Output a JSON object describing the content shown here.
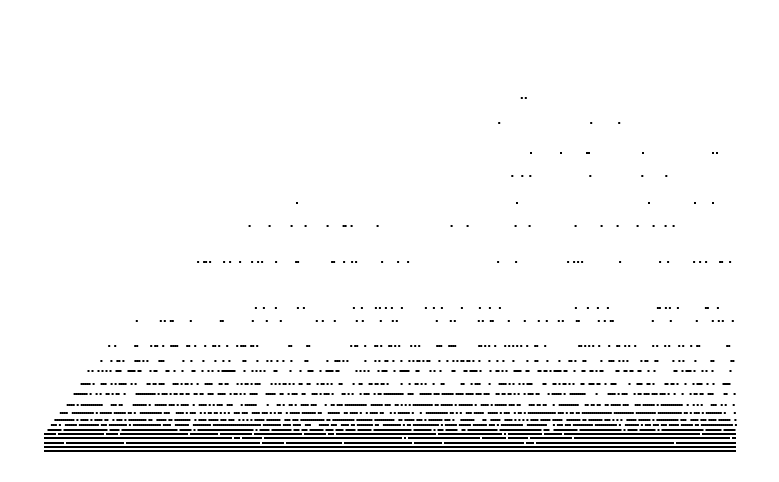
{
  "chart_data": {
    "type": "scatter",
    "title": "",
    "xlabel": "",
    "ylabel": "",
    "xlim": [
      0,
      1
    ],
    "ylim": [
      0,
      1
    ],
    "grid": false,
    "legend": "none",
    "marker_color": "#000000",
    "background_color": "#ffffff",
    "rows": [
      {
        "y": 0.0,
        "density": 1.0,
        "xmin": 0.0,
        "xmax": 1.0
      },
      {
        "y": 0.01,
        "density": 1.0,
        "xmin": 0.0,
        "xmax": 1.0
      },
      {
        "y": 0.02,
        "density": 0.98,
        "xmin": 0.0,
        "xmax": 1.0
      },
      {
        "y": 0.03,
        "density": 0.97,
        "xmin": 0.0,
        "xmax": 1.0
      },
      {
        "y": 0.04,
        "density": 0.95,
        "xmin": 0.0,
        "xmax": 1.0
      },
      {
        "y": 0.05,
        "density": 0.92,
        "xmin": 0.005,
        "xmax": 1.0
      },
      {
        "y": 0.062,
        "density": 0.86,
        "xmin": 0.01,
        "xmax": 1.0
      },
      {
        "y": 0.075,
        "density": 0.78,
        "xmin": 0.015,
        "xmax": 1.0
      },
      {
        "y": 0.09,
        "density": 0.7,
        "xmin": 0.02,
        "xmax": 1.0
      },
      {
        "y": 0.11,
        "density": 0.62,
        "xmin": 0.03,
        "xmax": 1.0
      },
      {
        "y": 0.135,
        "density": 0.55,
        "xmin": 0.04,
        "xmax": 1.0
      },
      {
        "y": 0.16,
        "density": 0.48,
        "xmin": 0.05,
        "xmax": 1.0
      },
      {
        "y": 0.19,
        "density": 0.4,
        "xmin": 0.06,
        "xmax": 1.0
      },
      {
        "y": 0.215,
        "density": 0.34,
        "xmin": 0.07,
        "xmax": 1.0
      },
      {
        "y": 0.25,
        "density": 0.24,
        "xmin": 0.09,
        "xmax": 1.0
      },
      {
        "y": 0.31,
        "density": 0.17,
        "xmin": 0.13,
        "xmax": 1.0
      },
      {
        "y": 0.34,
        "density": 0.1,
        "xmin": 0.23,
        "xmax": 1.0
      },
      {
        "y": 0.45,
        "density": 0.12,
        "xmin": 0.21,
        "xmax": 1.0
      },
      {
        "y": 0.535,
        "density": 0.07,
        "xmin": 0.27,
        "xmax": 1.0
      },
      {
        "y": 0.59,
        "density": 0.04,
        "xmin": 0.33,
        "xmax": 1.0
      },
      {
        "y": 0.655,
        "density": 0.03,
        "xmin": 0.41,
        "xmax": 0.94
      },
      {
        "y": 0.71,
        "density": 0.03,
        "xmin": 0.44,
        "xmax": 1.0
      },
      {
        "y": 0.78,
        "density": 0.02,
        "xmin": 0.64,
        "xmax": 0.86
      },
      {
        "y": 0.84,
        "density": 0.01,
        "xmin": 0.69,
        "xmax": 0.76
      },
      {
        "y": 1.0,
        "density": 0.01,
        "xmin": 0.85,
        "xmax": 0.87
      }
    ]
  }
}
